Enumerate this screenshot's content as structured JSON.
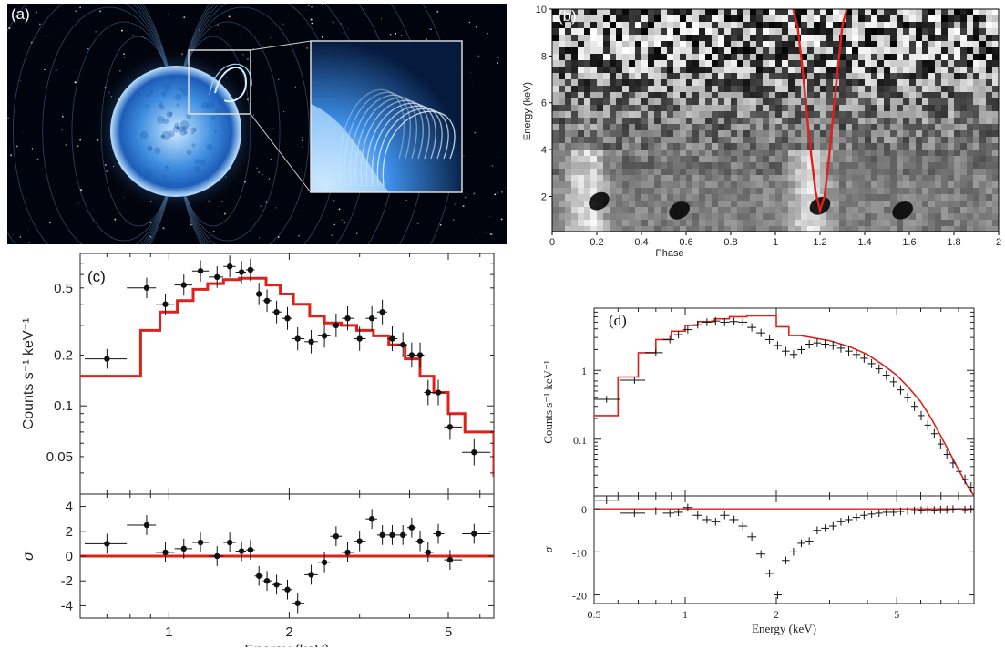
{
  "figure": {
    "panel_a": {
      "tag": "(a)"
    },
    "panel_b": {
      "tag": "(b)"
    },
    "panel_c": {
      "tag": "(c)"
    },
    "panel_d": {
      "tag": "(d)"
    }
  },
  "colors": {
    "model": "#e0201b",
    "data": "#111111",
    "axis": "#222222",
    "star": "#7fc4ff"
  },
  "chart_data": [
    {
      "panel": "(b)",
      "type": "heatmap",
      "xlabel": "Phase",
      "ylabel": "Energy (keV)",
      "xlim": [
        0,
        2
      ],
      "ylim": [
        0.5,
        10
      ],
      "xticks": [
        "0",
        "0.2",
        "0.4",
        "0.6",
        "0.8",
        "1",
        "1.2",
        "1.4",
        "1.6",
        "1.8",
        "2"
      ],
      "yticks": [
        "2",
        "4",
        "6",
        "8",
        "10"
      ],
      "curve": {
        "x": [
          1.08,
          1.1,
          1.12,
          1.14,
          1.16,
          1.18,
          1.2,
          1.22,
          1.24,
          1.26,
          1.28,
          1.3,
          1.32
        ],
        "y": [
          10.0,
          9.2,
          7.6,
          5.6,
          3.8,
          2.2,
          1.4,
          2.0,
          3.6,
          5.6,
          7.5,
          9.3,
          10.0
        ]
      },
      "dark_dips": [
        {
          "x": 0.21,
          "y": 1.8
        },
        {
          "x": 0.57,
          "y": 1.4
        },
        {
          "x": 1.2,
          "y": 1.6
        },
        {
          "x": 1.57,
          "y": 1.4
        }
      ]
    },
    {
      "panel": "(c)",
      "type": "scatter",
      "xlabel": "Energy (keV)",
      "ylabel": "Counts s⁻¹ keV⁻¹",
      "xscale": "log",
      "yscale": "log",
      "xlim": [
        0.6,
        6.5
      ],
      "ylim": [
        0.03,
        0.8
      ],
      "xticks": [
        "1",
        "2",
        "5"
      ],
      "yticks": [
        "0.05",
        "0.1",
        "0.2",
        "0.5"
      ],
      "points": {
        "x": [
          0.7,
          0.88,
          0.98,
          1.09,
          1.2,
          1.32,
          1.42,
          1.52,
          1.6,
          1.68,
          1.76,
          1.86,
          1.98,
          2.1,
          2.27,
          2.45,
          2.62,
          2.8,
          3.0,
          3.22,
          3.42,
          3.62,
          3.85,
          4.05,
          4.25,
          4.45,
          4.72,
          5.05,
          5.8
        ],
        "y": [
          0.19,
          0.5,
          0.4,
          0.52,
          0.63,
          0.58,
          0.67,
          0.62,
          0.64,
          0.46,
          0.42,
          0.36,
          0.33,
          0.25,
          0.24,
          0.26,
          0.3,
          0.33,
          0.25,
          0.33,
          0.36,
          0.25,
          0.23,
          0.2,
          0.2,
          0.12,
          0.12,
          0.075,
          0.053
        ]
      },
      "model": {
        "edges": [
          0.6,
          0.85,
          0.95,
          1.05,
          1.15,
          1.25,
          1.37,
          1.5,
          1.62,
          1.75,
          1.9,
          2.05,
          2.25,
          2.45,
          2.7,
          2.95,
          3.25,
          3.55,
          3.9,
          4.25,
          4.6,
          5.0,
          5.5,
          6.5
        ],
        "values": [
          0.15,
          0.28,
          0.36,
          0.42,
          0.49,
          0.53,
          0.56,
          0.57,
          0.57,
          0.52,
          0.46,
          0.4,
          0.34,
          0.31,
          0.3,
          0.28,
          0.26,
          0.23,
          0.19,
          0.15,
          0.12,
          0.09,
          0.07,
          0.038
        ]
      },
      "residuals": {
        "ylabel": "σ",
        "ylim": [
          -5,
          5
        ],
        "yticks": [
          "-4",
          "-2",
          "0",
          "2",
          "4"
        ],
        "values": [
          1.0,
          2.5,
          0.3,
          0.6,
          1.1,
          0.0,
          1.1,
          0.4,
          0.5,
          -1.6,
          -2.0,
          -2.3,
          -2.7,
          -3.8,
          -1.5,
          -0.5,
          1.6,
          0.3,
          1.2,
          3.0,
          1.7,
          1.7,
          1.7,
          2.3,
          1.2,
          0.3,
          1.8,
          -0.3,
          1.8
        ]
      }
    },
    {
      "panel": "(d)",
      "type": "scatter",
      "xlabel": "Energy (keV)",
      "ylabel": "Counts s⁻¹ keV⁻¹",
      "xscale": "log",
      "yscale": "log",
      "xlim": [
        0.5,
        9.0
      ],
      "ylim": [
        0.015,
        8
      ],
      "xticks": [
        "0.5",
        "1",
        "2",
        "5"
      ],
      "yticks": [
        "0.1",
        "1"
      ],
      "points": {
        "x": [
          0.55,
          0.68,
          0.8,
          0.89,
          0.95,
          1.02,
          1.1,
          1.18,
          1.26,
          1.35,
          1.45,
          1.55,
          1.66,
          1.78,
          1.9,
          2.02,
          2.15,
          2.28,
          2.42,
          2.57,
          2.73,
          2.9,
          3.08,
          3.27,
          3.47,
          3.68,
          3.9,
          4.13,
          4.37,
          4.62,
          4.88,
          5.15,
          5.43,
          5.72,
          6.02,
          6.33,
          6.65,
          6.98,
          7.32,
          7.67,
          8.03,
          8.4,
          8.8
        ],
        "y": [
          0.38,
          0.72,
          1.8,
          2.8,
          3.3,
          3.9,
          4.6,
          5.0,
          5.2,
          5.0,
          5.1,
          5.0,
          4.2,
          3.5,
          2.8,
          2.3,
          1.9,
          1.7,
          2.0,
          2.4,
          2.5,
          2.4,
          2.3,
          2.1,
          1.9,
          1.7,
          1.5,
          1.25,
          1.05,
          0.85,
          0.68,
          0.52,
          0.4,
          0.3,
          0.22,
          0.16,
          0.12,
          0.085,
          0.06,
          0.045,
          0.034,
          0.026,
          0.02
        ]
      },
      "model": {
        "edges": [
          0.5,
          0.6,
          0.7,
          0.8,
          0.9,
          1.0,
          1.1,
          1.25,
          1.4,
          1.6,
          1.8,
          2.0,
          2.2,
          2.4
        ],
        "values": [
          0.22,
          0.8,
          1.8,
          2.8,
          3.7,
          4.5,
          5.1,
          5.6,
          6.0,
          6.2,
          6.2,
          4.3,
          3.2
        ],
        "tail": {
          "x": [
            2.4,
            3.0,
            3.5,
            4.0,
            4.5,
            5.0,
            5.5,
            6.0,
            6.5,
            7.0,
            7.5,
            8.0,
            8.5,
            9.0
          ],
          "y": [
            3.2,
            2.7,
            2.2,
            1.7,
            1.2,
            0.85,
            0.55,
            0.35,
            0.2,
            0.11,
            0.062,
            0.036,
            0.022,
            0.015
          ]
        }
      },
      "residuals": {
        "ylabel": "σ",
        "ylim": [
          -22,
          3
        ],
        "yticks": [
          "0",
          "-10",
          "-20"
        ],
        "values": [
          2.0,
          -1.0,
          -0.5,
          -1.0,
          -0.8,
          0.3,
          -1.5,
          -2.5,
          -3.0,
          -1.5,
          -2.5,
          -4.0,
          -6.5,
          -10.5,
          -15.0,
          -20.0,
          -12.0,
          -10.0,
          -8.0,
          -7.5,
          -5.0,
          -4.5,
          -4.0,
          -3.0,
          -2.5,
          -2.0,
          -1.5,
          -1.2,
          -1.0,
          -0.8,
          -0.8,
          -0.6,
          -0.5,
          -0.4,
          -0.3,
          -0.2,
          -0.3,
          -0.2,
          -0.2,
          -0.1,
          0.0,
          -0.2,
          -0.1
        ]
      }
    }
  ]
}
